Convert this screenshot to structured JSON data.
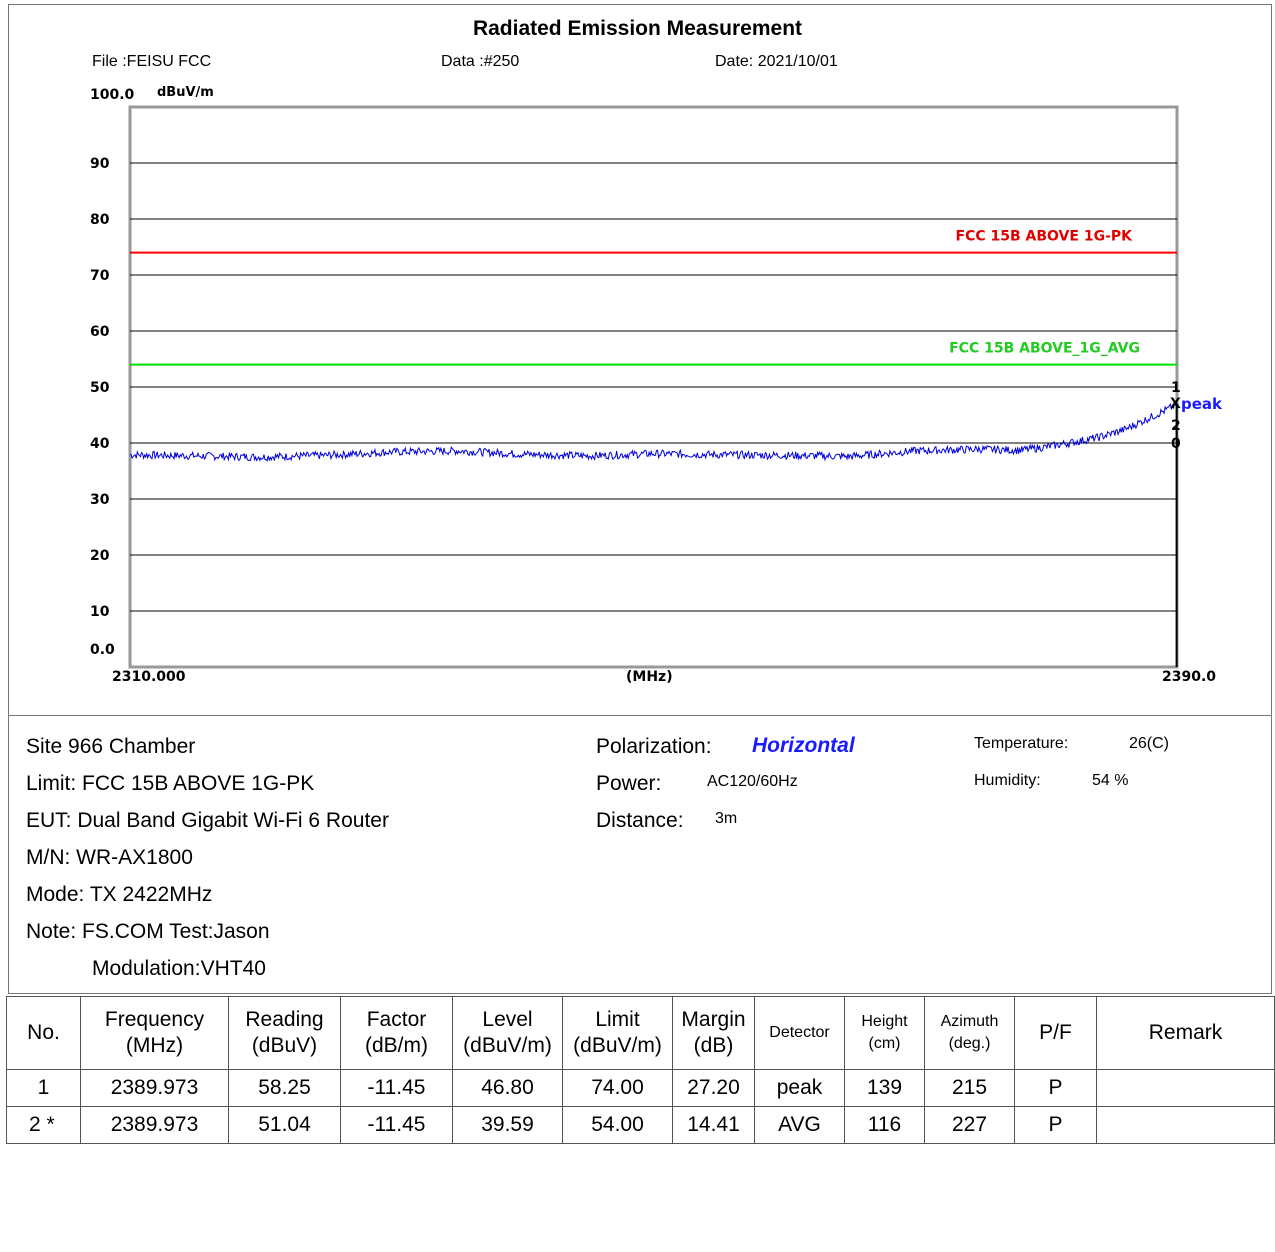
{
  "header": {
    "title": "Radiated Emission Measurement",
    "file": "File :FEISU FCC",
    "data": "Data :#250",
    "date": "Date: 2021/10/01"
  },
  "chart_data": {
    "type": "line",
    "ylabel": "dBuV/m",
    "xlabel": "(MHz)",
    "xlim": [
      2310.0,
      2390.0
    ],
    "ylim": [
      0.0,
      100.0
    ],
    "ytick_labels": [
      "0.0",
      "10",
      "20",
      "30",
      "40",
      "50",
      "60",
      "70",
      "80",
      "90",
      "100.0"
    ],
    "xtick_labels": [
      "2310.000",
      "2390.0"
    ],
    "grid": true,
    "series": [
      {
        "name": "",
        "color": "#0000dd",
        "x": [
          2310,
          2315,
          2320,
          2325,
          2330,
          2335,
          2340,
          2345,
          2350,
          2355,
          2360,
          2365,
          2370,
          2375,
          2378,
          2380,
          2382,
          2384,
          2386,
          2388,
          2389.973
        ],
        "y": [
          37.9,
          37.7,
          37.5,
          37.8,
          38.4,
          38.6,
          38.0,
          37.7,
          38.1,
          37.9,
          37.8,
          37.6,
          38.6,
          38.9,
          38.7,
          39.3,
          40.1,
          41.0,
          42.4,
          44.6,
          46.8
        ]
      }
    ],
    "limit_lines": [
      {
        "label": "FCC  15B ABOVE 1G-PK",
        "value": 74.0,
        "color": "#ff0000"
      },
      {
        "label": "FCC  15B ABOVE_1G_AVG",
        "value": 54.0,
        "color": "#00dd00"
      }
    ],
    "markers": [
      {
        "id": "1",
        "symbol": "X",
        "x": 2389.973,
        "y": 46.8,
        "label": "peak"
      },
      {
        "id": "2",
        "x": 2389.973,
        "y": 39.59
      }
    ],
    "marker_zero": "0"
  },
  "info": {
    "site": "Site  966 Chamber",
    "limit": "Limit:  FCC  15B ABOVE 1G-PK",
    "eut": "EUT:  Dual Band Gigabit Wi-Fi 6 Router",
    "mn": "M/N:  WR-AX1800",
    "mode": "Mode:  TX 2422MHz",
    "note": "Note:  FS.COM      Test:Jason",
    "modulation": "Modulation:VHT40",
    "polarization_label": "Polarization:",
    "polarization_value": "Horizontal",
    "power_label": "Power:",
    "power_value": "AC120/60Hz",
    "distance_label": "Distance:",
    "distance_value": "3m",
    "temperature_label": "Temperature:",
    "temperature_value": "26(C)",
    "humidity_label": "Humidity:",
    "humidity_value": "54 %"
  },
  "table": {
    "headers": {
      "no": "No.",
      "freq1": "Frequency",
      "freq2": "(MHz)",
      "read1": "Reading",
      "read2": "(dBuV)",
      "fact1": "Factor",
      "fact2": "(dB/m)",
      "lev1": "Level",
      "lev2": "(dBuV/m)",
      "lim1": "Limit",
      "lim2": "(dBuV/m)",
      "mar1": "Margin",
      "mar2": "(dB)",
      "det": "Detector",
      "hgt1": "Height",
      "hgt2": "(cm)",
      "azi1": "Azimuth",
      "azi2": "(deg.)",
      "pf": "P/F",
      "remark": "Remark"
    },
    "rows": [
      {
        "no": "1",
        "freq": "2389.973",
        "reading": "58.25",
        "factor": "-11.45",
        "level": "46.80",
        "limit": "74.00",
        "margin": "27.20",
        "detector": "peak",
        "height": "139",
        "azimuth": "215",
        "pf": "P",
        "remark": ""
      },
      {
        "no": "2  *",
        "freq": "2389.973",
        "reading": "51.04",
        "factor": "-11.45",
        "level": "39.59",
        "limit": "54.00",
        "margin": "14.41",
        "detector": "AVG",
        "height": "116",
        "azimuth": "227",
        "pf": "P",
        "remark": ""
      }
    ]
  }
}
